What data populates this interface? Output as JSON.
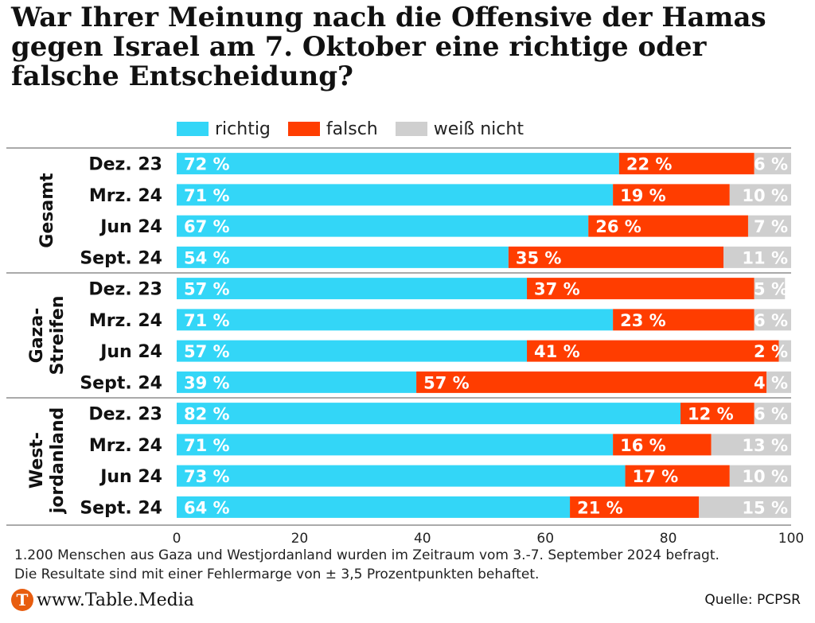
{
  "title": "War Ihrer Meinung nach die Offensive der Hamas gegen Israel am 7. Oktober eine richtige oder falsche Entscheidung?",
  "legend": [
    {
      "name": "richtig",
      "color": "#33d6f7"
    },
    {
      "name": "falsch",
      "color": "#ff3d00"
    },
    {
      "name": "weiß nicht",
      "color": "#cfcfcf"
    }
  ],
  "chart_data": {
    "type": "bar",
    "orientation": "horizontal",
    "stacked": true,
    "xlim": [
      0,
      100
    ],
    "xticks": [
      0,
      20,
      40,
      60,
      80,
      100
    ],
    "groups": [
      {
        "label": "Gesamt",
        "rows": [
          {
            "label": "Dez. 23",
            "values": [
              72,
              22,
              6
            ]
          },
          {
            "label": "Mrz. 24",
            "values": [
              71,
              19,
              10
            ]
          },
          {
            "label": "Jun 24",
            "values": [
              67,
              26,
              7
            ]
          },
          {
            "label": "Sept. 24",
            "values": [
              54,
              35,
              11
            ]
          }
        ]
      },
      {
        "label": "Gaza-\nStreifen",
        "rows": [
          {
            "label": "Dez. 23",
            "values": [
              57,
              37,
              5
            ]
          },
          {
            "label": "Mrz. 24",
            "values": [
              71,
              23,
              6
            ]
          },
          {
            "label": "Jun 24",
            "values": [
              57,
              41,
              2
            ]
          },
          {
            "label": "Sept. 24",
            "values": [
              39,
              57,
              4
            ]
          }
        ]
      },
      {
        "label": "West-\njordanland",
        "rows": [
          {
            "label": "Dez. 23",
            "values": [
              82,
              12,
              6
            ]
          },
          {
            "label": "Mrz. 24",
            "values": [
              71,
              16,
              13
            ]
          },
          {
            "label": "Jun 24",
            "values": [
              73,
              17,
              10
            ]
          },
          {
            "label": "Sept. 24",
            "values": [
              64,
              21,
              15
            ]
          }
        ]
      }
    ],
    "series": [
      {
        "name": "richtig",
        "color": "#33d6f7"
      },
      {
        "name": "falsch",
        "color": "#ff3d00"
      },
      {
        "name": "weiß nicht",
        "color": "#cfcfcf"
      }
    ],
    "label_suffix": " %",
    "legend_position": "top"
  },
  "note": {
    "line1": "1.200 Menschen aus Gaza und Westjordanland wurden im Zeitraum vom 3.-7. September 2024 befragt.",
    "line2": "Die Resultate sind mit einer Fehlermarge von ± 3,5 Prozentpunkten behaftet."
  },
  "footer": {
    "logo_letter": "T",
    "logo_text": "www.Table.Media",
    "source": "Quelle: PCPSR"
  }
}
